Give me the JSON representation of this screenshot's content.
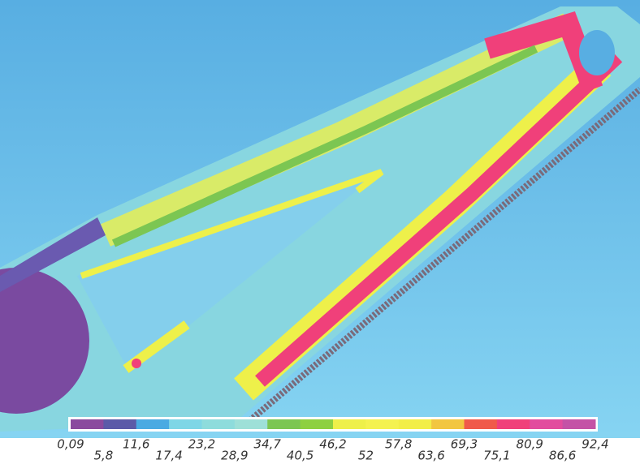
{
  "legend": {
    "ticks": [
      {
        "value": 0.09,
        "label": "0,09"
      },
      {
        "value": 5.8,
        "label": "5,8"
      },
      {
        "value": 11.6,
        "label": "11,6"
      },
      {
        "value": 17.4,
        "label": "17,4"
      },
      {
        "value": 23.2,
        "label": "23,2"
      },
      {
        "value": 28.9,
        "label": "28,9"
      },
      {
        "value": 34.7,
        "label": "34,7"
      },
      {
        "value": 40.5,
        "label": "40,5"
      },
      {
        "value": 46.2,
        "label": "46,2"
      },
      52,
      {
        "value": 57.8,
        "label": "57,8"
      },
      {
        "value": 63.6,
        "label": "63,6"
      },
      {
        "value": 69.3,
        "label": "69,3"
      },
      {
        "value": 75.1,
        "label": "75,1"
      },
      {
        "value": 80.9,
        "label": "80,9"
      },
      {
        "value": 86.6,
        "label": "86,6"
      },
      {
        "value": 92.4,
        "label": "92,4"
      }
    ],
    "colors": [
      "#8a4a9e",
      "#5b5aa8",
      "#4aaae2",
      "#7ed6e6",
      "#8edcdc",
      "#9ee0d8",
      "#7cc652",
      "#8ed040",
      "#eef04a",
      "#f4f250",
      "#f2ee48",
      "#f2c640",
      "#f05a4a",
      "#f0407a",
      "#e24c9e",
      "#c452a6"
    ]
  }
}
